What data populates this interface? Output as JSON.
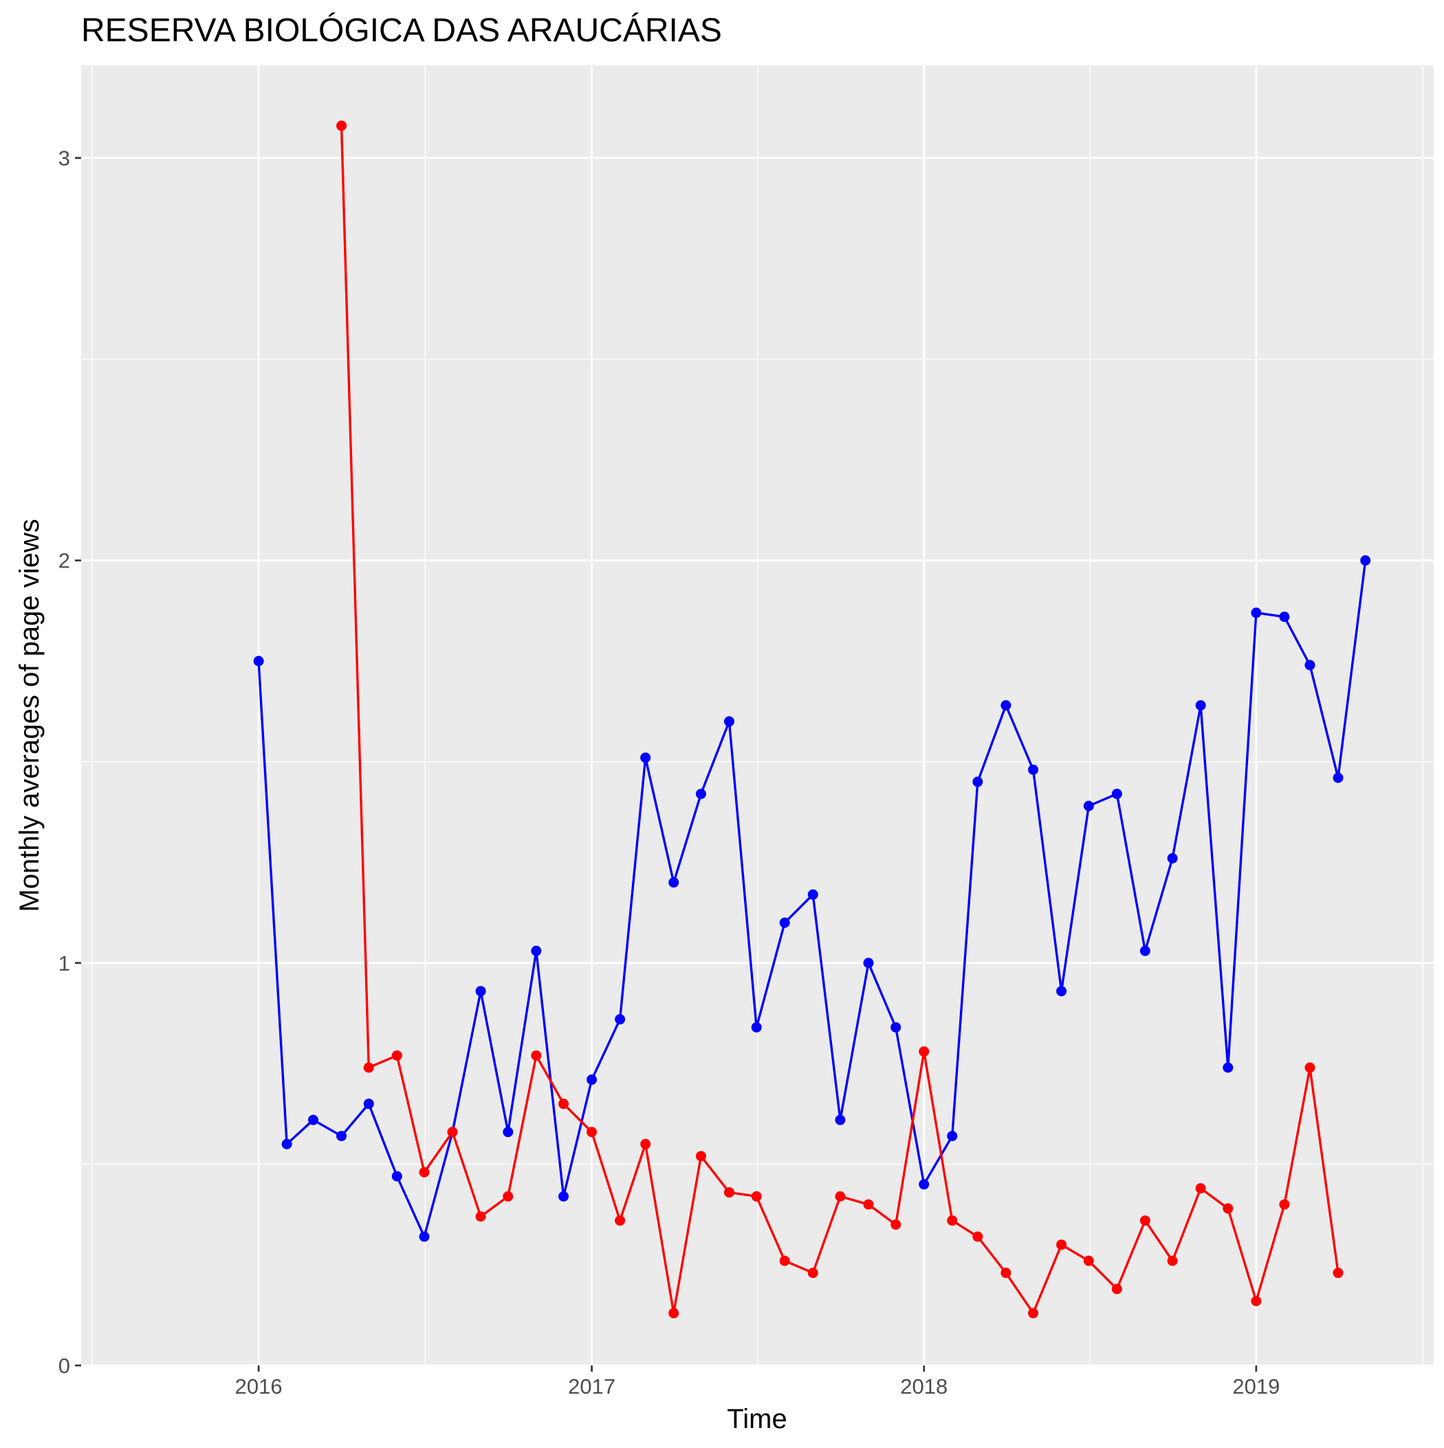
{
  "chart_data": {
    "type": "line",
    "title": "RESERVA BIOLÓGICA DAS ARAUCÁRIAS",
    "xlabel": "Time",
    "ylabel": "Monthly averages of page views",
    "x_ticks": [
      "2016",
      "2017",
      "2018",
      "2019"
    ],
    "y_ticks": [
      "0",
      "1",
      "2",
      "3"
    ],
    "xlim": [
      "2015-06-20",
      "2019-07-15"
    ],
    "ylim": [
      0,
      3.23
    ],
    "grid": true,
    "legend": "none",
    "background_color": "#ebebeb",
    "series": [
      {
        "color": "#0000ff",
        "x": [
          "2016-01",
          "2016-02",
          "2016-03",
          "2016-04",
          "2016-05",
          "2016-06",
          "2016-07",
          "2016-08",
          "2016-09",
          "2016-10",
          "2016-11",
          "2016-12",
          "2017-01",
          "2017-02",
          "2017-03",
          "2017-04",
          "2017-05",
          "2017-06",
          "2017-07",
          "2017-08",
          "2017-09",
          "2017-10",
          "2017-11",
          "2017-12",
          "2018-01",
          "2018-02",
          "2018-03",
          "2018-04",
          "2018-05",
          "2018-06",
          "2018-07",
          "2018-08",
          "2018-09",
          "2018-10",
          "2018-11",
          "2018-12",
          "2019-01",
          "2019-02",
          "2019-03",
          "2019-04",
          "2019-05"
        ],
        "values": [
          1.75,
          0.55,
          0.61,
          0.57,
          0.65,
          0.47,
          0.32,
          0.58,
          0.93,
          0.58,
          1.03,
          0.42,
          0.71,
          0.86,
          1.51,
          1.2,
          1.42,
          1.6,
          0.84,
          1.1,
          1.17,
          0.61,
          1.0,
          0.84,
          0.45,
          0.57,
          1.45,
          1.64,
          1.48,
          0.93,
          1.39,
          1.42,
          1.03,
          1.26,
          1.64,
          0.74,
          1.87,
          1.86,
          1.74,
          1.46,
          2.0
        ]
      },
      {
        "color": "#ff0000",
        "x": [
          "2016-04",
          "2016-05",
          "2016-06",
          "2016-07",
          "2016-08",
          "2016-09",
          "2016-10",
          "2016-11",
          "2016-12",
          "2017-01",
          "2017-02",
          "2017-03",
          "2017-04",
          "2017-05",
          "2017-06",
          "2017-07",
          "2017-08",
          "2017-09",
          "2017-10",
          "2017-11",
          "2017-12",
          "2018-01",
          "2018-02",
          "2018-03",
          "2018-04",
          "2018-05",
          "2018-06",
          "2018-07",
          "2018-08",
          "2018-09",
          "2018-10",
          "2018-11",
          "2018-12",
          "2019-01",
          "2019-02",
          "2019-03",
          "2019-04"
        ],
        "values": [
          3.08,
          0.74,
          0.77,
          0.48,
          0.58,
          0.37,
          0.42,
          0.77,
          0.65,
          0.58,
          0.36,
          0.55,
          0.13,
          0.52,
          0.43,
          0.42,
          0.26,
          0.23,
          0.42,
          0.4,
          0.35,
          0.78,
          0.36,
          0.32,
          0.23,
          0.13,
          0.3,
          0.26,
          0.19,
          0.36,
          0.26,
          0.44,
          0.39,
          0.16,
          0.4,
          0.74,
          0.23
        ]
      }
    ]
  }
}
